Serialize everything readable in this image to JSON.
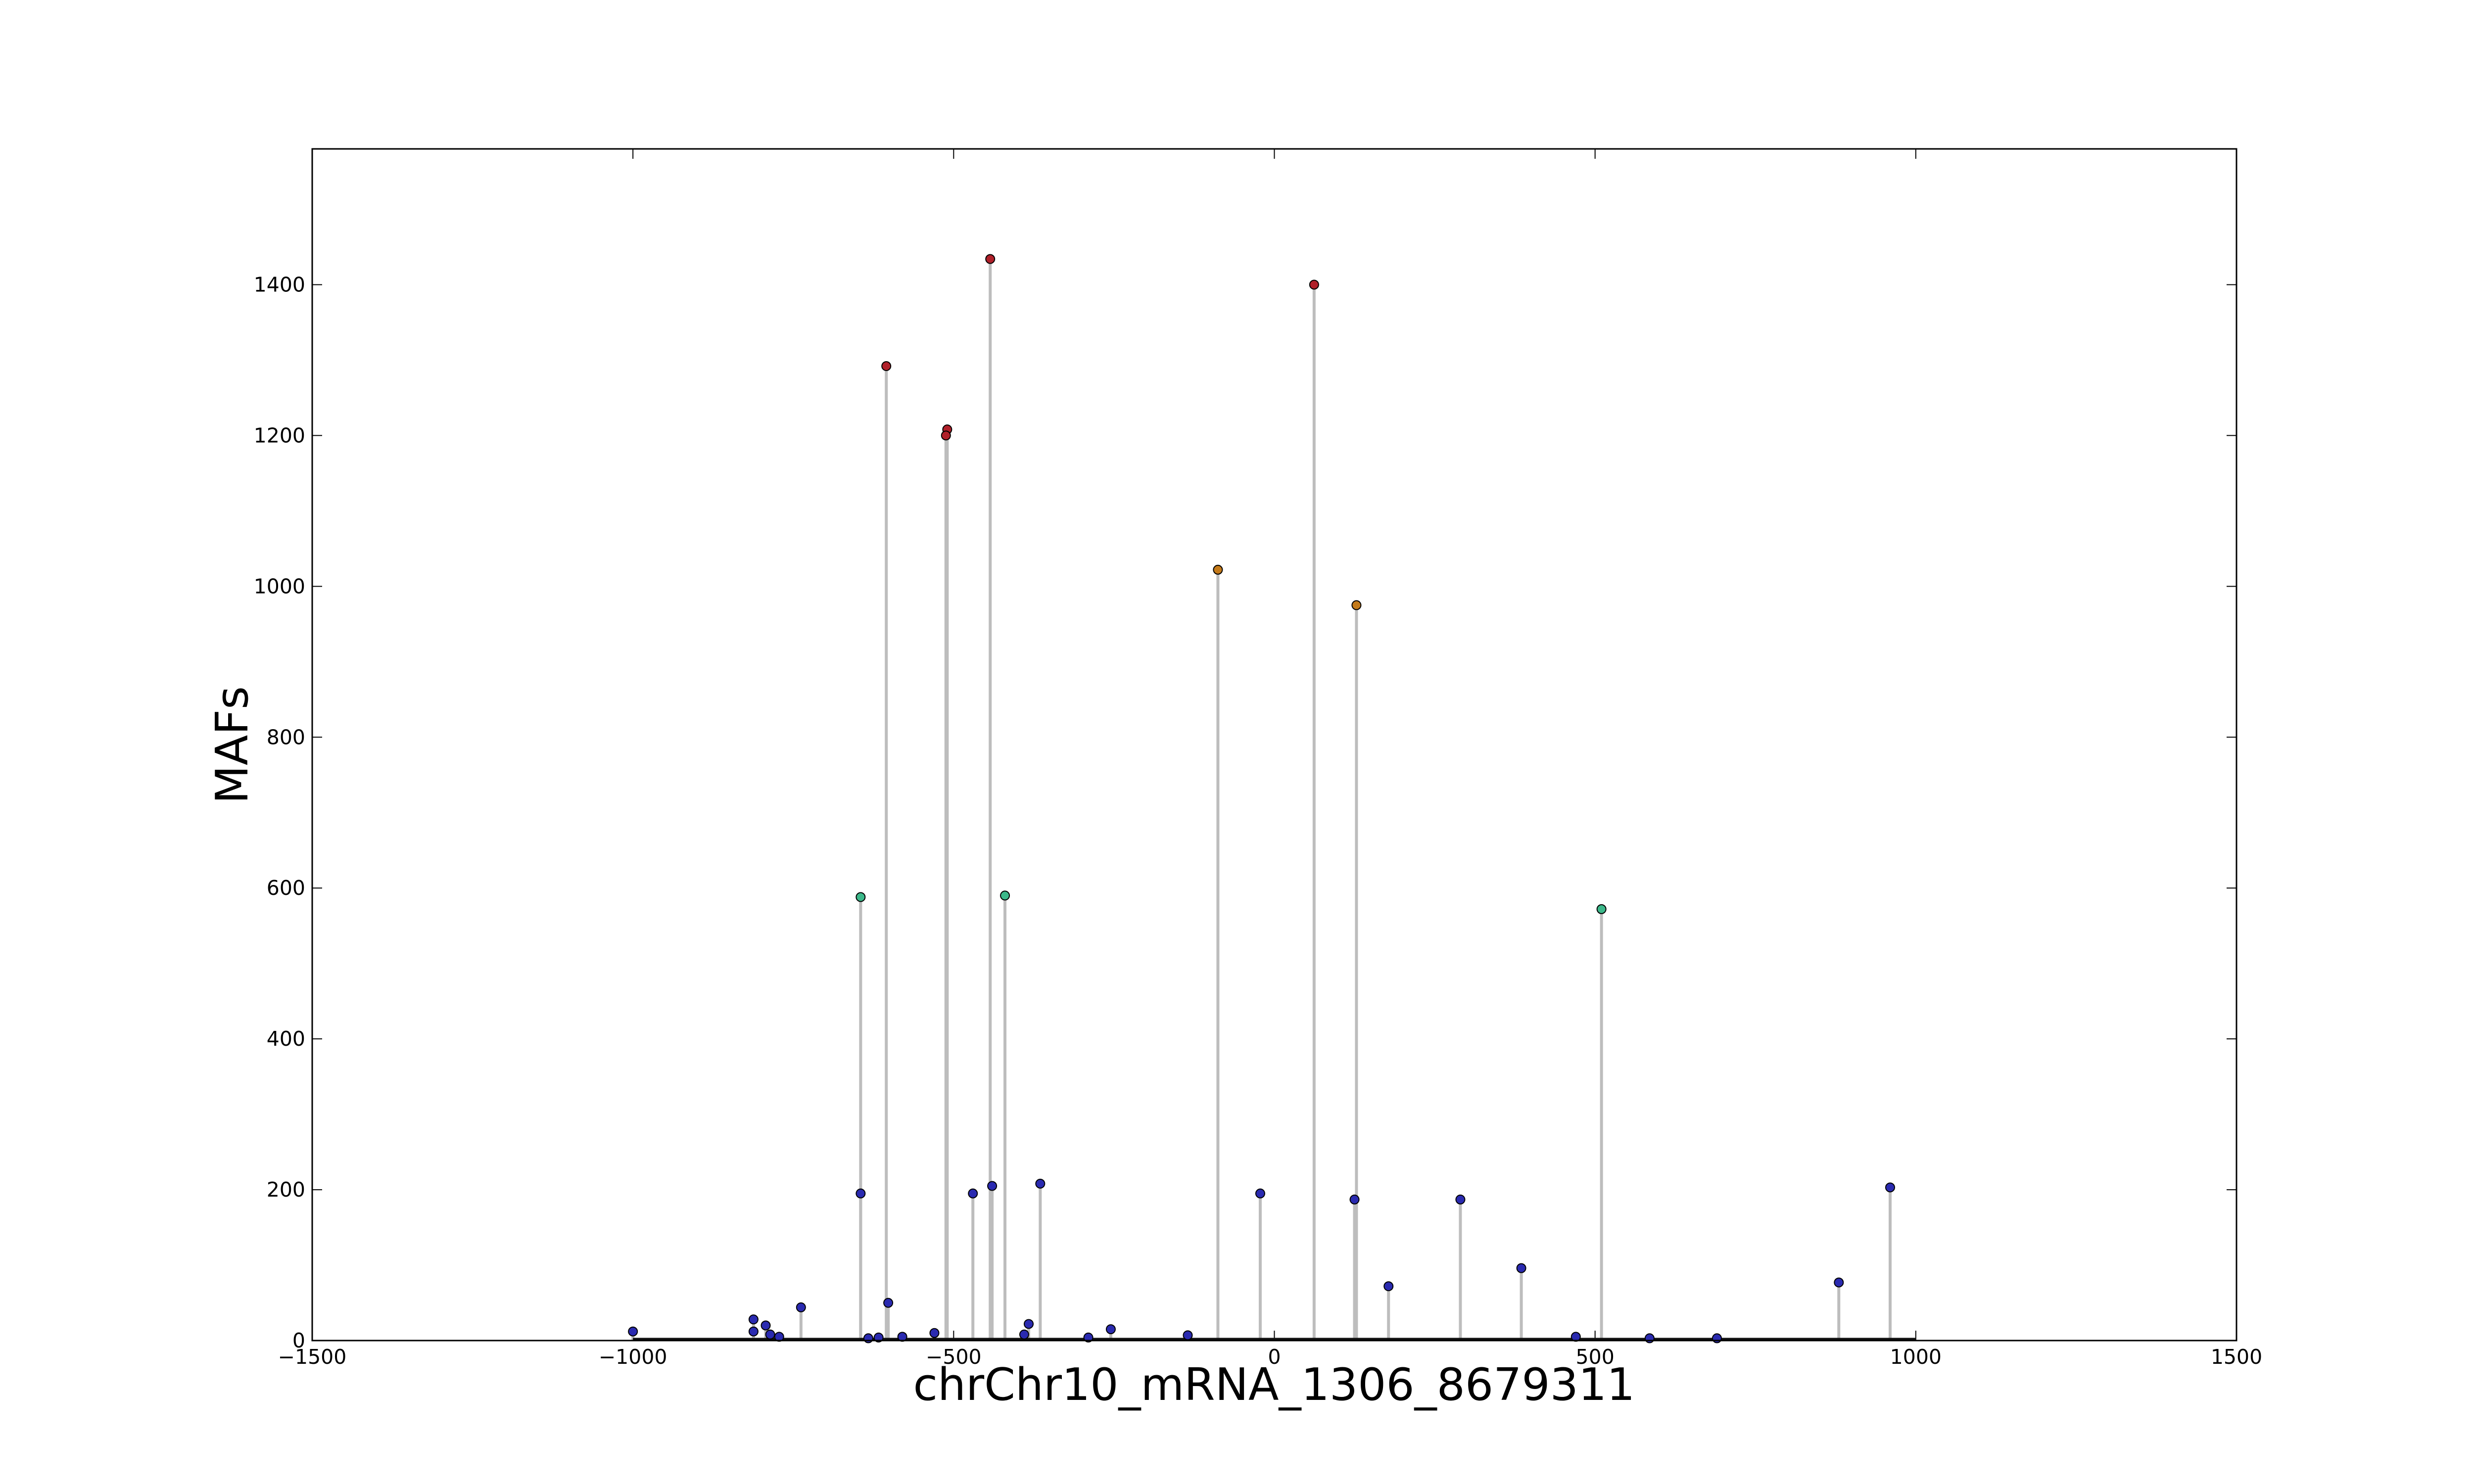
{
  "chart_data": {
    "type": "scatter",
    "style": "lollipop",
    "title": "",
    "xlabel": "chrChr10_mRNA_1306_8679311",
    "ylabel": "MAFs",
    "xlim": [
      -1500,
      1500
    ],
    "ylim": [
      0,
      1580
    ],
    "xticks": [
      -1500,
      -1000,
      -500,
      0,
      500,
      1000,
      1500
    ],
    "xtick_labels": [
      "−1500",
      "−1000",
      "−500",
      "0",
      "500",
      "1000",
      "1500"
    ],
    "yticks": [
      0,
      200,
      400,
      600,
      800,
      1000,
      1200,
      1400
    ],
    "ytick_labels": [
      "0",
      "200",
      "400",
      "600",
      "800",
      "1000",
      "1200",
      "1400"
    ],
    "grid": false,
    "baseline_range": [
      -1000,
      1000
    ],
    "stem_color": "#bdbdbd",
    "colors": {
      "high": "#b0202a",
      "mid_high": "#c47a1a",
      "mid": "#3cb88a",
      "low": "#2a2ab0"
    },
    "points": [
      {
        "x": -1000,
        "y": 12,
        "color": "low"
      },
      {
        "x": -812,
        "y": 28,
        "color": "low"
      },
      {
        "x": -812,
        "y": 12,
        "color": "low"
      },
      {
        "x": -793,
        "y": 20,
        "color": "low"
      },
      {
        "x": -786,
        "y": 8,
        "color": "low"
      },
      {
        "x": -772,
        "y": 5,
        "color": "low"
      },
      {
        "x": -738,
        "y": 44,
        "color": "low"
      },
      {
        "x": -645,
        "y": 588,
        "color": "mid"
      },
      {
        "x": -645,
        "y": 195,
        "color": "low"
      },
      {
        "x": -633,
        "y": 3,
        "color": "low"
      },
      {
        "x": -617,
        "y": 4,
        "color": "low"
      },
      {
        "x": -605,
        "y": 1292,
        "color": "high"
      },
      {
        "x": -602,
        "y": 50,
        "color": "low"
      },
      {
        "x": -580,
        "y": 5,
        "color": "low"
      },
      {
        "x": -530,
        "y": 10,
        "color": "low"
      },
      {
        "x": -510,
        "y": 1208,
        "color": "high"
      },
      {
        "x": -512,
        "y": 1200,
        "color": "high"
      },
      {
        "x": -470,
        "y": 195,
        "color": "low"
      },
      {
        "x": -443,
        "y": 1434,
        "color": "high"
      },
      {
        "x": -440,
        "y": 205,
        "color": "low"
      },
      {
        "x": -420,
        "y": 590,
        "color": "mid"
      },
      {
        "x": -390,
        "y": 8,
        "color": "low"
      },
      {
        "x": -383,
        "y": 22,
        "color": "low"
      },
      {
        "x": -365,
        "y": 208,
        "color": "low"
      },
      {
        "x": -290,
        "y": 4,
        "color": "low"
      },
      {
        "x": -255,
        "y": 15,
        "color": "low"
      },
      {
        "x": -135,
        "y": 7,
        "color": "low"
      },
      {
        "x": -88,
        "y": 1022,
        "color": "mid_high"
      },
      {
        "x": -22,
        "y": 195,
        "color": "low"
      },
      {
        "x": 62,
        "y": 1400,
        "color": "high"
      },
      {
        "x": 128,
        "y": 975,
        "color": "mid_high"
      },
      {
        "x": 125,
        "y": 187,
        "color": "low"
      },
      {
        "x": 178,
        "y": 72,
        "color": "low"
      },
      {
        "x": 290,
        "y": 187,
        "color": "low"
      },
      {
        "x": 385,
        "y": 96,
        "color": "low"
      },
      {
        "x": 470,
        "y": 5,
        "color": "low"
      },
      {
        "x": 510,
        "y": 572,
        "color": "mid"
      },
      {
        "x": 585,
        "y": 3,
        "color": "low"
      },
      {
        "x": 690,
        "y": 3,
        "color": "low"
      },
      {
        "x": 880,
        "y": 77,
        "color": "low"
      },
      {
        "x": 960,
        "y": 203,
        "color": "low"
      }
    ]
  }
}
